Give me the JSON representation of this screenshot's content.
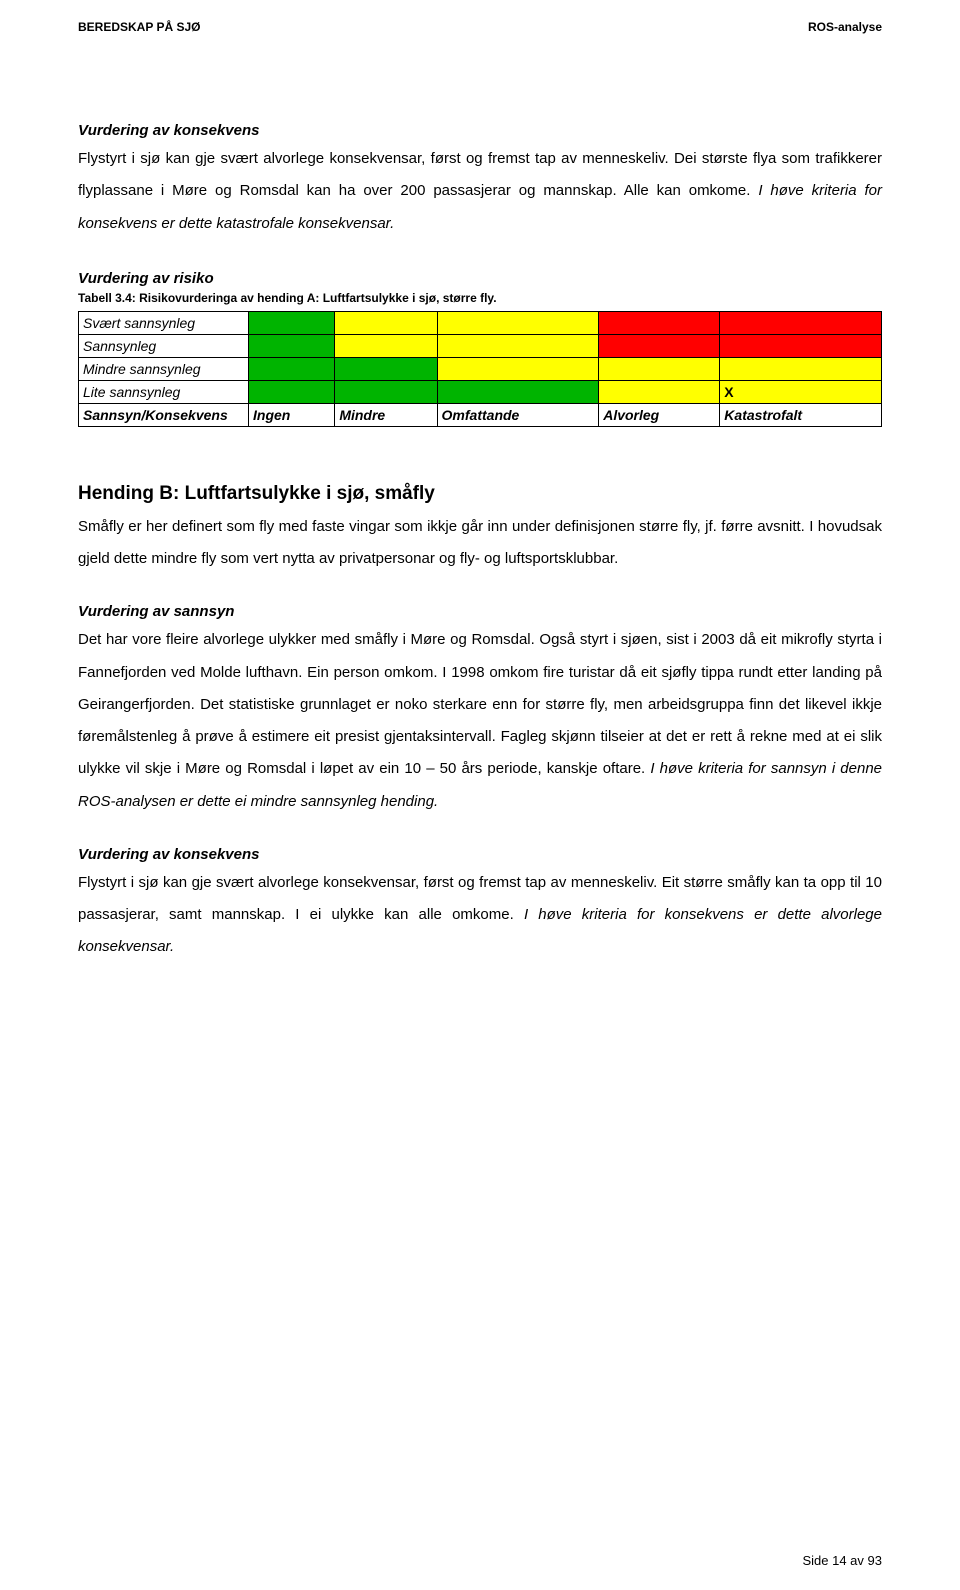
{
  "header": {
    "left": "BEREDSKAP PÅ SJØ",
    "right": "ROS-analyse"
  },
  "sec1": {
    "title": "Vurdering av konsekvens",
    "para_a": "Flystyrt i sjø kan gje svært alvorlege konsekvensar, først og fremst tap av menneskeliv. Dei største flya som trafikkerer flyplassane i Møre og Romsdal kan ha over 200 passasjerar og mannskap. Alle kan omkome. ",
    "para_b": "I høve kriteria for konsekvens er dette katastrofale konsekvensar."
  },
  "sec2": {
    "title": "Vurdering av risiko",
    "caption": "Tabell 3.4: Risikovurderinga av hending A: Luftfartsulykke i sjø, større fly."
  },
  "table": {
    "row_labels": [
      "Svært sannsynleg",
      "Sannsynleg",
      "Mindre sannsynleg",
      "Lite sannsynleg"
    ],
    "header_row": [
      "Sannsyn/Konsekvens",
      "Ingen",
      "Mindre",
      "Omfattande",
      "Alvorleg",
      "Katastrofalt"
    ],
    "x_label": "X",
    "colors": {
      "green": "#00b400",
      "yellow": "#ffff00",
      "red": "#ff0000",
      "white": "#ffffff"
    },
    "grid": [
      [
        "green",
        "yellow",
        "yellow",
        "red",
        "red"
      ],
      [
        "green",
        "yellow",
        "yellow",
        "red",
        "red"
      ],
      [
        "green",
        "green",
        "yellow",
        "yellow",
        "yellow"
      ],
      [
        "green",
        "green",
        "green",
        "yellow",
        "yellow"
      ]
    ],
    "x_cell": {
      "row": 3,
      "col": 4
    }
  },
  "hending": {
    "title": "Hending B: Luftfartsulykke i sjø, småfly",
    "para": "Småfly er her definert som fly med faste vingar som ikkje går inn under definisjonen større fly, jf. førre avsnitt. I hovudsak gjeld dette mindre fly som vert nytta av privatpersonar og fly- og luftsportsklubbar."
  },
  "sec3": {
    "title": "Vurdering av sannsyn",
    "para_a": "Det har vore fleire alvorlege ulykker med småfly i Møre og Romsdal. Også styrt i sjøen, sist i 2003 då eit mikrofly styrta i Fannefjorden ved Molde lufthavn. Ein person omkom. I 1998 omkom fire turistar då eit sjøfly tippa rundt etter landing på Geirangerfjorden. Det statistiske grunnlaget er noko sterkare enn for større fly, men arbeidsgruppa finn det likevel ikkje føremålstenleg å prøve å estimere eit presist gjentaksintervall. Fagleg skjønn tilseier at det er rett å rekne med at ei slik ulykke vil skje i Møre og Romsdal i løpet av ein 10 – 50 års periode, kanskje oftare. ",
    "para_b": "I høve kriteria for sannsyn i denne ROS-analysen er dette ei mindre sannsynleg hending."
  },
  "sec4": {
    "title": "Vurdering av konsekvens",
    "para_a": "Flystyrt i sjø kan gje svært alvorlege konsekvensar, først og fremst tap av menneskeliv. Eit større småfly kan ta opp til 10 passasjerar, samt mannskap. I ei ulykke kan alle omkome. ",
    "para_b": "I høve kriteria for konsekvens er dette alvorlege konsekvensar."
  },
  "footer": "Side 14 av 93"
}
